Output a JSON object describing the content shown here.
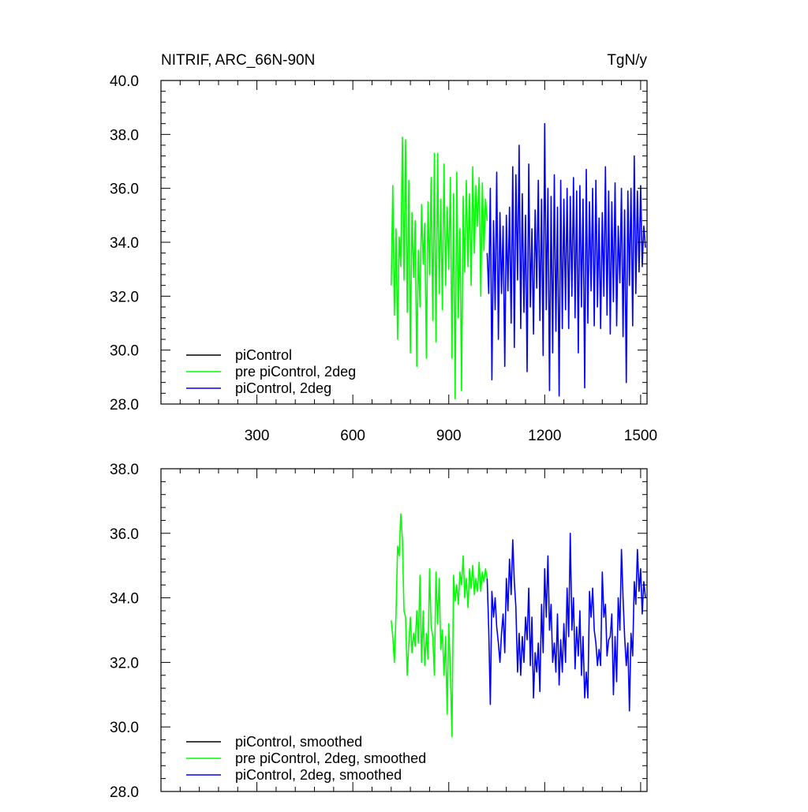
{
  "chart_data": [
    {
      "type": "line",
      "title": "NITRIF, ARC_66N-90N",
      "units": "TgN/y",
      "xlabel": "",
      "ylabel": "",
      "xlim": [
        0,
        1520
      ],
      "ylim": [
        28.0,
        40.0
      ],
      "x_ticks": [
        300,
        600,
        900,
        1200,
        1500
      ],
      "x_tick_labels": [
        "300",
        "600",
        "900",
        "1200",
        "1500"
      ],
      "y_ticks": [
        28.0,
        30.0,
        32.0,
        34.0,
        36.0,
        38.0,
        40.0
      ],
      "y_tick_labels": [
        "28.0",
        "30.0",
        "32.0",
        "34.0",
        "36.0",
        "38.0",
        "40.0"
      ],
      "legend_position": "bottom-left",
      "series": [
        {
          "name": "piControl",
          "color": "#000000",
          "x": [],
          "y": []
        },
        {
          "name": "pre piControl, 2deg",
          "color": "#00ff00",
          "x": [
            720,
            725,
            730,
            735,
            740,
            745,
            750,
            755,
            760,
            765,
            770,
            775,
            780,
            785,
            790,
            795,
            800,
            805,
            810,
            815,
            820,
            825,
            830,
            835,
            840,
            845,
            850,
            855,
            860,
            865,
            870,
            875,
            880,
            885,
            890,
            895,
            900,
            905,
            910,
            915,
            920,
            925,
            930,
            935,
            940,
            945,
            950,
            955,
            960,
            965,
            970,
            975,
            980,
            985,
            990,
            995,
            1000,
            1005,
            1010,
            1015,
            1020
          ],
          "y": [
            32.4,
            36.1,
            31.3,
            34.5,
            30.4,
            34.2,
            33.1,
            37.9,
            32.6,
            37.8,
            31.4,
            36.3,
            29.9,
            35.1,
            32.7,
            34.8,
            29.4,
            33.7,
            31.6,
            35.4,
            33.2,
            34.7,
            29.7,
            35.5,
            32.8,
            36.4,
            31.1,
            37.3,
            30.3,
            37.3,
            32.1,
            35.6,
            31.5,
            36.9,
            32.4,
            35.3,
            33.0,
            36.4,
            29.7,
            35.8,
            28.2,
            36.6,
            31.2,
            34.5,
            28.5,
            35.7,
            32.9,
            36.3,
            33.1,
            35.8,
            32.4,
            36.8,
            33.6,
            36.1,
            34.6,
            36.4,
            32.0,
            36.2,
            33.7,
            35.6,
            34.8
          ]
        },
        {
          "name": "piControl, 2deg",
          "color": "#0000ff",
          "x": [
            1020,
            1025,
            1030,
            1035,
            1040,
            1045,
            1050,
            1055,
            1060,
            1065,
            1070,
            1075,
            1080,
            1085,
            1090,
            1095,
            1100,
            1105,
            1110,
            1115,
            1120,
            1125,
            1130,
            1135,
            1140,
            1145,
            1150,
            1155,
            1160,
            1165,
            1170,
            1175,
            1180,
            1185,
            1190,
            1195,
            1200,
            1205,
            1210,
            1215,
            1220,
            1225,
            1230,
            1235,
            1240,
            1245,
            1250,
            1255,
            1260,
            1265,
            1270,
            1275,
            1280,
            1285,
            1290,
            1295,
            1300,
            1305,
            1310,
            1315,
            1320,
            1325,
            1330,
            1335,
            1340,
            1345,
            1350,
            1355,
            1360,
            1365,
            1370,
            1375,
            1380,
            1385,
            1390,
            1395,
            1400,
            1405,
            1410,
            1415,
            1420,
            1425,
            1430,
            1435,
            1440,
            1445,
            1450,
            1455,
            1460,
            1465,
            1470,
            1475,
            1480,
            1485,
            1490,
            1495,
            1500,
            1505,
            1510,
            1515
          ],
          "y": [
            33.6,
            32.1,
            36.0,
            28.9,
            34.8,
            31.5,
            36.6,
            30.4,
            35.1,
            32.1,
            34.6,
            29.4,
            35.0,
            32.2,
            35.3,
            31.0,
            36.8,
            30.1,
            36.5,
            32.6,
            37.6,
            30.8,
            35.8,
            31.4,
            35.0,
            29.2,
            36.9,
            31.6,
            34.5,
            30.6,
            35.2,
            32.3,
            36.3,
            31.1,
            35.6,
            29.8,
            38.4,
            31.5,
            36.0,
            28.5,
            35.7,
            29.9,
            36.5,
            30.7,
            35.3,
            28.3,
            36.3,
            30.8,
            35.6,
            31.5,
            36.0,
            30.8,
            35.7,
            32.0,
            36.4,
            31.2,
            35.9,
            29.9,
            36.1,
            31.6,
            35.6,
            28.6,
            36.7,
            31.0,
            35.5,
            32.2,
            36.0,
            30.9,
            36.3,
            31.6,
            34.9,
            30.8,
            35.1,
            32.0,
            36.8,
            31.3,
            35.9,
            30.6,
            35.5,
            31.8,
            36.2,
            30.9,
            34.6,
            32.5,
            36.0,
            30.5,
            35.2,
            28.8,
            35.9,
            32.4,
            36.0,
            30.9,
            37.2,
            32.1,
            35.9,
            32.9,
            36.1,
            33.1,
            34.6,
            33.8
          ]
        }
      ]
    },
    {
      "type": "line",
      "title": "",
      "xlabel": "",
      "ylabel": "",
      "xlim": [
        0,
        1520
      ],
      "ylim": [
        28.0,
        38.0
      ],
      "x_ticks": [
        300,
        600,
        900,
        1200,
        1500
      ],
      "y_ticks": [
        28.0,
        30.0,
        32.0,
        34.0,
        36.0,
        38.0
      ],
      "y_tick_labels": [
        "28.0",
        "30.0",
        "32.0",
        "34.0",
        "36.0",
        "38.0"
      ],
      "legend_position": "bottom-left",
      "series": [
        {
          "name": "piControl, smoothed",
          "color": "#000000",
          "x": [],
          "y": []
        },
        {
          "name": "pre piControl, 2deg, smoothed",
          "color": "#00ff00",
          "x": [
            720,
            725,
            730,
            735,
            740,
            745,
            750,
            755,
            760,
            765,
            770,
            775,
            780,
            785,
            790,
            795,
            800,
            805,
            810,
            815,
            820,
            825,
            830,
            835,
            840,
            845,
            850,
            855,
            860,
            865,
            870,
            875,
            880,
            885,
            890,
            895,
            900,
            905,
            910,
            915,
            920,
            925,
            930,
            935,
            940,
            945,
            950,
            955,
            960,
            965,
            970,
            975,
            980,
            985,
            990,
            995,
            1000,
            1005,
            1010,
            1015,
            1020
          ],
          "y": [
            33.3,
            32.8,
            32.0,
            33.5,
            35.6,
            35.3,
            36.6,
            35.8,
            33.6,
            33.4,
            31.6,
            32.6,
            33.4,
            32.3,
            32.9,
            32.5,
            33.6,
            32.6,
            34.7,
            32.0,
            33.6,
            31.9,
            32.9,
            32.1,
            34.9,
            33.1,
            32.8,
            31.6,
            34.8,
            33.2,
            34.6,
            32.4,
            33.0,
            31.6,
            32.8,
            30.4,
            33.2,
            31.7,
            29.7,
            34.7,
            33.9,
            34.4,
            33.8,
            34.8,
            34.4,
            35.3,
            34.0,
            34.6,
            33.7,
            34.9,
            34.3,
            35.0,
            34.1,
            34.6,
            34.2,
            35.1,
            34.2,
            34.8,
            34.5,
            34.9,
            34.6
          ]
        },
        {
          "name": "piControl, 2deg, smoothed",
          "color": "#0000ff",
          "x": [
            1020,
            1025,
            1030,
            1035,
            1040,
            1045,
            1050,
            1055,
            1060,
            1065,
            1070,
            1075,
            1080,
            1085,
            1090,
            1095,
            1100,
            1105,
            1110,
            1115,
            1120,
            1125,
            1130,
            1135,
            1140,
            1145,
            1150,
            1155,
            1160,
            1165,
            1170,
            1175,
            1180,
            1185,
            1190,
            1195,
            1200,
            1205,
            1210,
            1215,
            1220,
            1225,
            1230,
            1235,
            1240,
            1245,
            1250,
            1255,
            1260,
            1265,
            1270,
            1275,
            1280,
            1285,
            1290,
            1295,
            1300,
            1305,
            1310,
            1315,
            1320,
            1325,
            1330,
            1335,
            1340,
            1345,
            1350,
            1355,
            1360,
            1365,
            1370,
            1375,
            1380,
            1385,
            1390,
            1395,
            1400,
            1405,
            1410,
            1415,
            1420,
            1425,
            1430,
            1435,
            1440,
            1445,
            1450,
            1455,
            1460,
            1465,
            1470,
            1475,
            1480,
            1485,
            1490,
            1495,
            1500,
            1505,
            1510,
            1515
          ],
          "y": [
            34.6,
            33.0,
            30.7,
            34.2,
            33.4,
            34.0,
            33.1,
            32.6,
            32.0,
            32.9,
            33.5,
            32.3,
            34.6,
            33.6,
            35.2,
            34.1,
            35.8,
            34.5,
            33.7,
            31.7,
            32.9,
            31.6,
            32.8,
            32.0,
            33.4,
            32.7,
            34.3,
            31.9,
            33.4,
            30.9,
            32.3,
            31.7,
            32.6,
            31.1,
            33.8,
            32.3,
            34.9,
            33.4,
            35.3,
            33.0,
            33.8,
            32.0,
            32.6,
            31.7,
            33.5,
            31.3,
            32.7,
            31.7,
            33.2,
            32.0,
            34.3,
            32.8,
            36.0,
            33.0,
            34.0,
            31.8,
            33.1,
            32.2,
            33.6,
            31.6,
            32.8,
            30.9,
            31.7,
            30.9,
            34.2,
            33.4,
            34.3,
            33.0,
            32.6,
            31.9,
            32.4,
            31.9,
            34.8,
            33.4,
            33.8,
            32.2,
            32.7,
            32.8,
            33.5,
            31.0,
            32.8,
            31.4,
            34.0,
            33.0,
            35.5,
            34.0,
            32.8,
            31.9,
            32.6,
            30.5,
            32.9,
            32.2,
            34.5,
            33.8,
            35.5,
            34.2,
            34.9,
            33.5,
            34.5,
            34.0
          ]
        }
      ]
    }
  ]
}
